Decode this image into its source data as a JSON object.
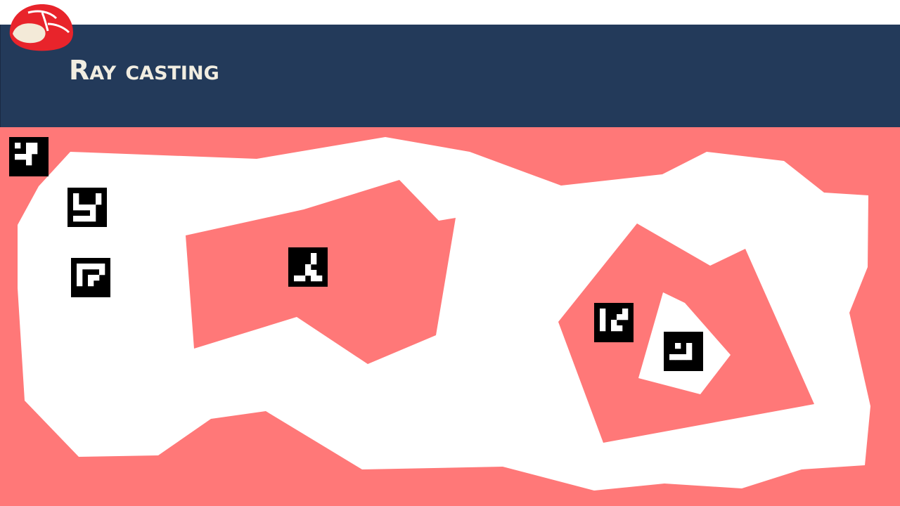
{
  "slide": {
    "title": "Ray casting"
  },
  "colors": {
    "header": "#233a5a",
    "title_text": "#f1ede1",
    "obstacle": "#ff7878",
    "free_space": "#ffffff",
    "marker": "#000000",
    "logo_red": "#e8242b",
    "logo_cream": "#f3ead8"
  },
  "icons": {
    "logo": "turtle-shell-logo-icon",
    "markers": "aruco-marker-icon"
  },
  "markers": [
    {
      "name": "aruco-marker-1",
      "bits": [
        "10110",
        "00110",
        "11100",
        "00100",
        "00000"
      ]
    },
    {
      "name": "aruco-marker-2",
      "bits": [
        "10001",
        "10001",
        "11110",
        "00010",
        "11110"
      ]
    },
    {
      "name": "aruco-marker-3",
      "bits": [
        "11111",
        "10001",
        "10110",
        "10100",
        "00000"
      ]
    },
    {
      "name": "aruco-marker-4",
      "bits": [
        "00010",
        "00010",
        "00100",
        "00110",
        "11011"
      ]
    },
    {
      "name": "aruco-marker-5",
      "bits": [
        "10001",
        "10011",
        "10100",
        "10110",
        "00000"
      ]
    },
    {
      "name": "aruco-marker-6",
      "bits": [
        "00000",
        "01010",
        "00010",
        "11110",
        "00000"
      ]
    }
  ]
}
